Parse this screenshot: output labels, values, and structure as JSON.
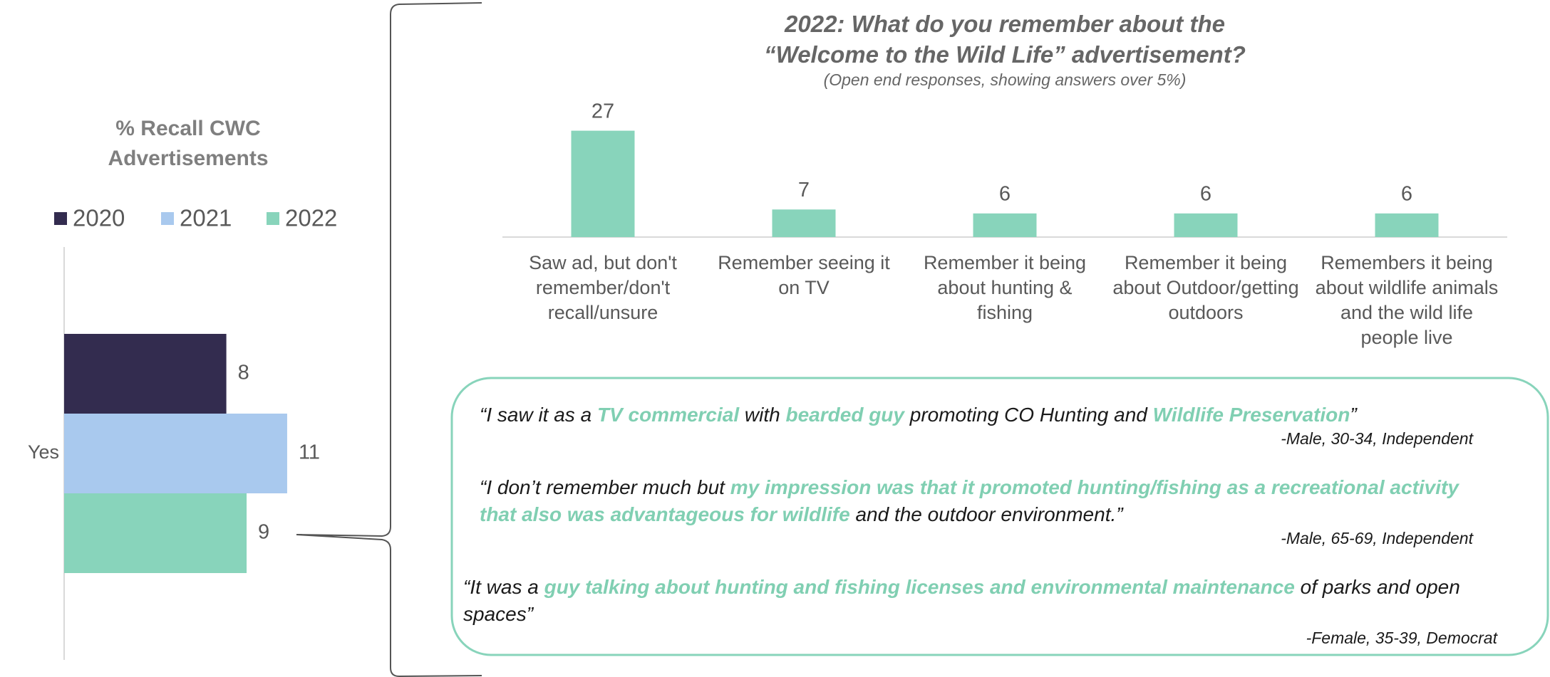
{
  "chart_data": [
    {
      "type": "hbar",
      "title": "% Recall CWC\nAdvertisements",
      "categories": [
        "Yes"
      ],
      "series": [
        {
          "name": "2020",
          "color": "#332c4f",
          "values": [
            8
          ]
        },
        {
          "name": "2021",
          "color": "#a9c9ee",
          "values": [
            11
          ]
        },
        {
          "name": "2022",
          "color": "#88d4bb",
          "values": [
            9
          ]
        }
      ],
      "xlim": [
        0,
        20
      ],
      "legend": "top"
    },
    {
      "type": "bar",
      "title": "2022: What do you remember about the\n“Welcome to the Wild Life” advertisement?",
      "subtitle": "(Open end responses, showing answers over 5%)",
      "categories": [
        "Saw ad, but don't remember/don't recall/unsure",
        "Remember seeing it on TV",
        "Remember it being about hunting & fishing",
        "Remember it being about Outdoor/getting outdoors",
        "Remembers it being about wildlife animals and the wild life people live"
      ],
      "values": [
        27,
        7,
        6,
        6,
        6
      ],
      "color": "#88d4bb",
      "ylim": [
        0,
        30
      ]
    }
  ],
  "quotes": [
    {
      "segments": [
        {
          "text": "“I saw it as a "
        },
        {
          "text": "TV commercial",
          "highlight": true
        },
        {
          "text": " with "
        },
        {
          "text": "bearded guy",
          "highlight": true
        },
        {
          "text": " promoting CO Hunting and "
        },
        {
          "text": "Wildlife Preservation",
          "highlight": true
        },
        {
          "text": "”"
        }
      ],
      "attribution": "-Male, 30-34, Independent"
    },
    {
      "segments": [
        {
          "text": "“I don’t remember much but "
        },
        {
          "text": "my impression was that it promoted hunting/fishing as a recreational activity that also was advantageous for wildlife",
          "highlight": true
        },
        {
          "text": " and the outdoor environment.”"
        }
      ],
      "attribution": "-Male, 65-69, Independent"
    },
    {
      "segments": [
        {
          "text": "“It was a "
        },
        {
          "text": "guy talking about hunting and fishing licenses and environmental maintenance",
          "highlight": true
        },
        {
          "text": " of parks and open spaces”"
        }
      ],
      "attribution": "-Female, 35-39, Democrat"
    }
  ]
}
